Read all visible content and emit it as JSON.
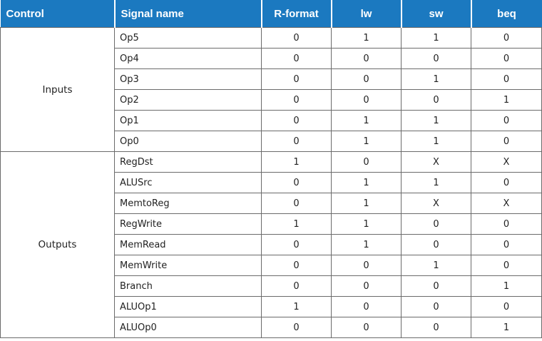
{
  "table": {
    "headers": [
      "Control",
      "Signal name",
      "R-format",
      "lw",
      "sw",
      "beq"
    ],
    "groups": [
      {
        "label": "Inputs",
        "rows": [
          {
            "signal": "Op5",
            "values": [
              "0",
              "1",
              "1",
              "0"
            ]
          },
          {
            "signal": "Op4",
            "values": [
              "0",
              "0",
              "0",
              "0"
            ]
          },
          {
            "signal": "Op3",
            "values": [
              "0",
              "0",
              "1",
              "0"
            ]
          },
          {
            "signal": "Op2",
            "values": [
              "0",
              "0",
              "0",
              "1"
            ]
          },
          {
            "signal": "Op1",
            "values": [
              "0",
              "1",
              "1",
              "0"
            ]
          },
          {
            "signal": "Op0",
            "values": [
              "0",
              "1",
              "1",
              "0"
            ]
          }
        ]
      },
      {
        "label": "Outputs",
        "rows": [
          {
            "signal": "RegDst",
            "values": [
              "1",
              "0",
              "X",
              "X"
            ]
          },
          {
            "signal": "ALUSrc",
            "values": [
              "0",
              "1",
              "1",
              "0"
            ]
          },
          {
            "signal": "MemtoReg",
            "values": [
              "0",
              "1",
              "X",
              "X"
            ]
          },
          {
            "signal": "RegWrite",
            "values": [
              "1",
              "1",
              "0",
              "0"
            ]
          },
          {
            "signal": "MemRead",
            "values": [
              "0",
              "1",
              "0",
              "0"
            ]
          },
          {
            "signal": "MemWrite",
            "values": [
              "0",
              "0",
              "1",
              "0"
            ]
          },
          {
            "signal": "Branch",
            "values": [
              "0",
              "0",
              "0",
              "1"
            ]
          },
          {
            "signal": "ALUOp1",
            "values": [
              "1",
              "0",
              "0",
              "0"
            ]
          },
          {
            "signal": "ALUOp0",
            "values": [
              "0",
              "0",
              "0",
              "1"
            ]
          }
        ]
      }
    ]
  },
  "colors": {
    "header_background": "#1b79c0",
    "header_text": "#ffffff",
    "grid_lines": "#6b6b6b"
  }
}
